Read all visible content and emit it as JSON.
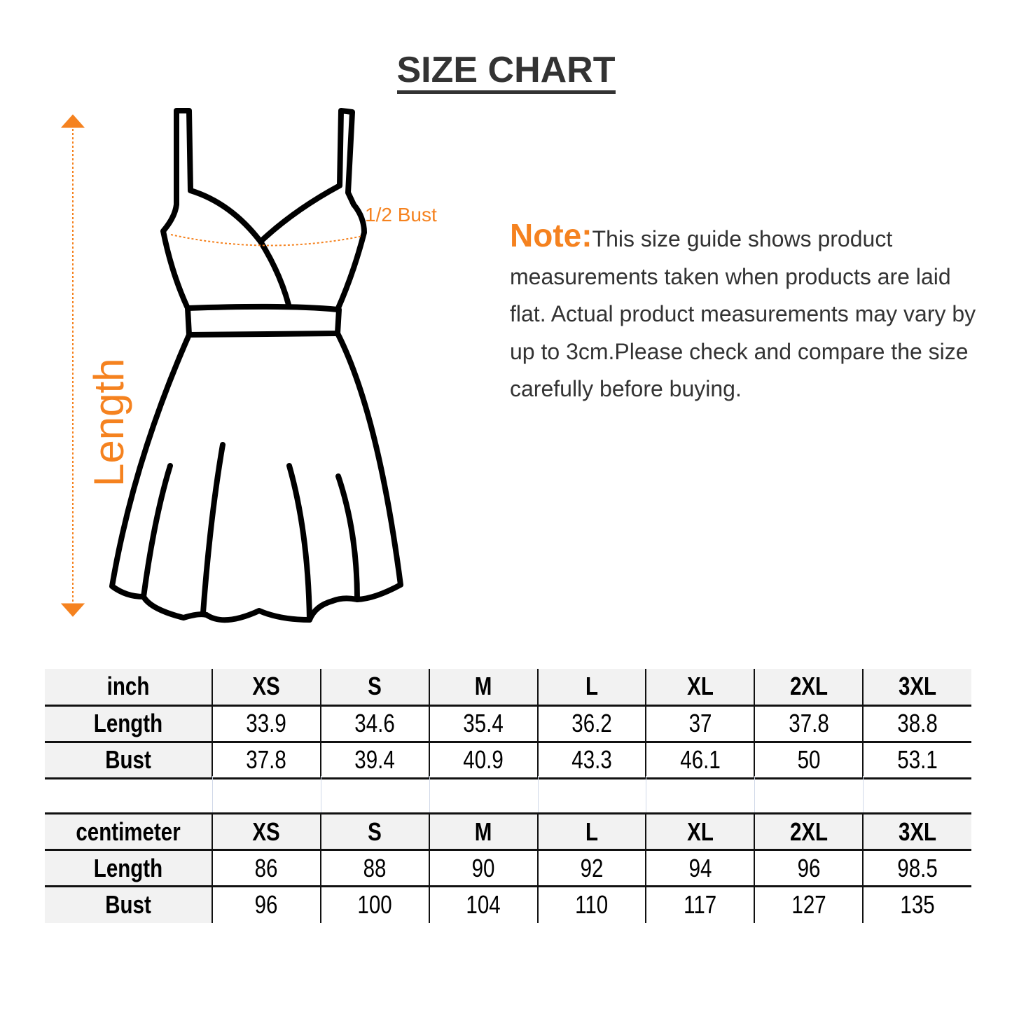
{
  "title": "SIZE CHART",
  "diagram": {
    "length_label": "Length",
    "bust_label": "1/2 Bust",
    "accent": "#f5821f"
  },
  "note": {
    "label": "Note:",
    "text": "This size guide shows product measurements taken when products are laid flat. Actual product measurements may vary by up to 3cm.Please check and compare the size carefully before buying."
  },
  "tables": [
    {
      "unit": "inch",
      "sizes": [
        "XS",
        "S",
        "M",
        "L",
        "XL",
        "2XL",
        "3XL"
      ],
      "rows": [
        {
          "label": "Length",
          "values": [
            "33.9",
            "34.6",
            "35.4",
            "36.2",
            "37",
            "37.8",
            "38.8"
          ]
        },
        {
          "label": "Bust",
          "values": [
            "37.8",
            "39.4",
            "40.9",
            "43.3",
            "46.1",
            "50",
            "53.1"
          ]
        }
      ]
    },
    {
      "unit": "centimeter",
      "sizes": [
        "XS",
        "S",
        "M",
        "L",
        "XL",
        "2XL",
        "3XL"
      ],
      "rows": [
        {
          "label": "Length",
          "values": [
            "86",
            "88",
            "90",
            "92",
            "94",
            "96",
            "98.5"
          ]
        },
        {
          "label": "Bust",
          "values": [
            "96",
            "100",
            "104",
            "110",
            "117",
            "127",
            "135"
          ]
        }
      ]
    }
  ]
}
